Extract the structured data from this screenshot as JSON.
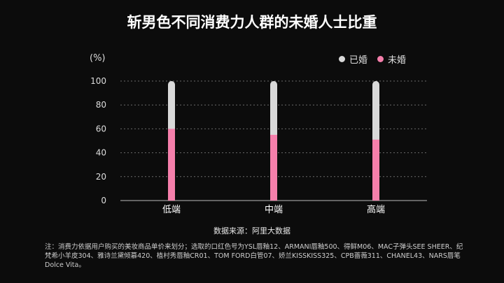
{
  "chart_data": {
    "type": "bar",
    "stacked": true,
    "title": "斩男色不同消费力人群的未婚人士比重",
    "ylabel": "(%)",
    "categories": [
      "低端",
      "中端",
      "高端"
    ],
    "yticks": [
      "100",
      "80",
      "60",
      "40",
      "20",
      "0"
    ],
    "ylim": [
      0,
      100
    ],
    "grid": true,
    "legend_position": "top-right",
    "series": [
      {
        "name": "已婚",
        "color": "#d9d9d9",
        "values": [
          40,
          45,
          49
        ]
      },
      {
        "name": "未婚",
        "color": "#f57fab",
        "values": [
          60,
          55,
          51
        ]
      }
    ]
  },
  "source": "数据来源：阿里大数据",
  "note": "注：消费力依据用户购买的美妆商品单价来划分；选取的口红色号为YSL唇釉12、ARMANI唇釉500、得鲜M06、MAC子弹头SEE SHEER、纪梵希小羊皮304、雅诗兰黛倾慕420、植村秀唇釉CR01、TOM FORD白管07、娇兰KISSKISS325、CPB蔷薇311、CHANEL43、NARS唇笔Dolce Vita。"
}
